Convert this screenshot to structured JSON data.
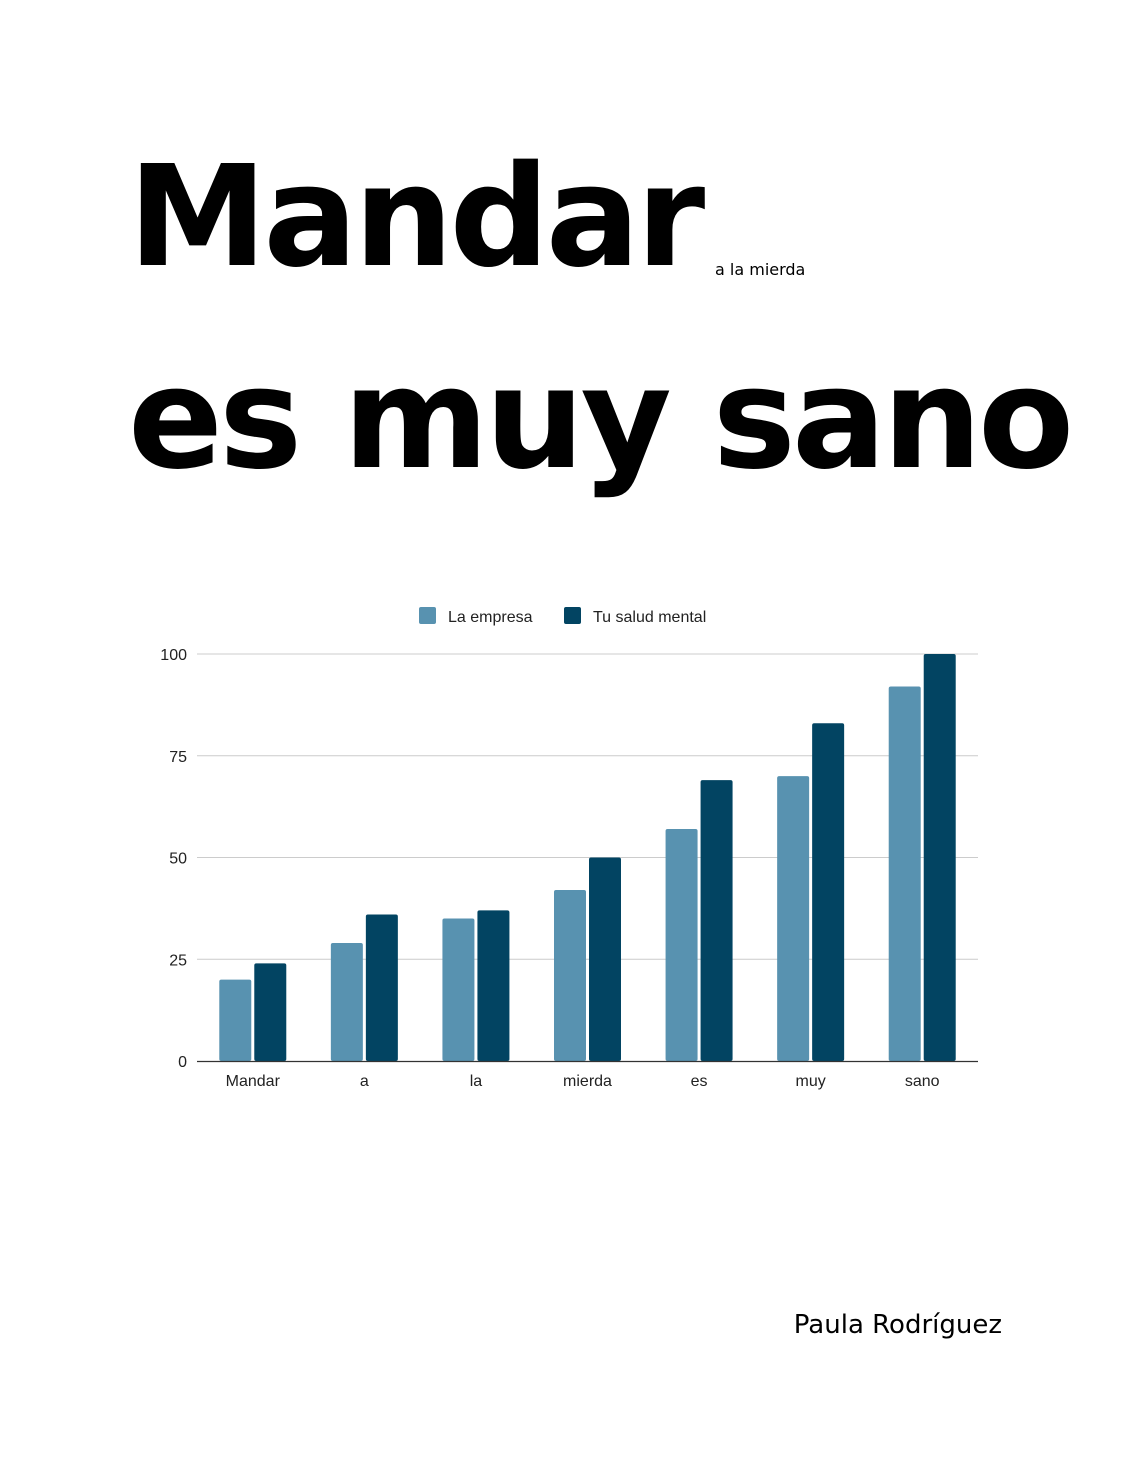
{
  "document": {
    "title_line_1": "Mandar",
    "title_aside": "a la mierda",
    "title_line_2": "es muy sano",
    "author": "Paula Rodríguez"
  },
  "chart_data": {
    "type": "bar",
    "categories": [
      "Mandar",
      "a",
      "la",
      "mierda",
      "es",
      "muy",
      "sano"
    ],
    "series": [
      {
        "name": "La empresa",
        "color": "#5892b0",
        "values": [
          20,
          29,
          35,
          42,
          57,
          70,
          92
        ]
      },
      {
        "name": "Tu salud mental",
        "color": "#024462",
        "values": [
          24,
          36,
          37,
          50,
          69,
          83,
          100
        ]
      }
    ],
    "title": "",
    "xlabel": "",
    "ylabel": "",
    "ylim": [
      0,
      100
    ],
    "yticks": [
      "0",
      "25",
      "50",
      "75",
      "100"
    ],
    "grid": true,
    "legend_position": "top"
  }
}
